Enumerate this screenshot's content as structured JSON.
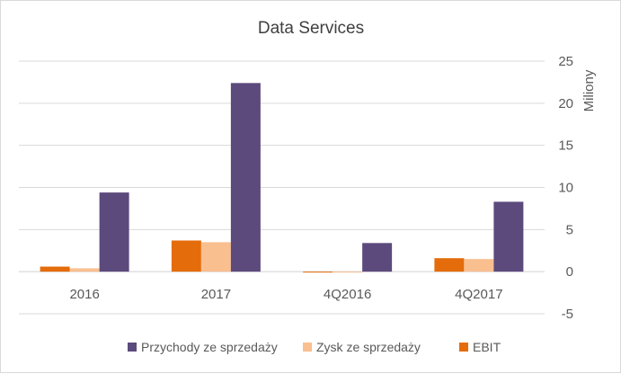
{
  "chart_data": {
    "type": "bar",
    "title": "Data Services",
    "ylabel": "Miliony",
    "xlabel": "",
    "categories": [
      "2016",
      "2017",
      "4Q2016",
      "4Q2017"
    ],
    "ylim": [
      -5,
      25
    ],
    "yticks": [
      25,
      20,
      15,
      10,
      5,
      0,
      -5
    ],
    "y_axis_side": "right",
    "grid": true,
    "legend_position": "bottom",
    "legend_order": [
      0,
      1,
      2
    ],
    "series": [
      {
        "name": "Przychody ze sprzedaży",
        "color": "#5c4a7d",
        "values": [
          9.4,
          22.4,
          3.4,
          8.3
        ]
      },
      {
        "name": "Zysk ze sprzedaży",
        "color": "#f9bf8f",
        "values": [
          0.4,
          3.5,
          -0.1,
          1.5
        ]
      },
      {
        "name": "EBIT",
        "color": "#e46c0a",
        "values": [
          0.6,
          3.7,
          -0.1,
          1.6
        ]
      }
    ],
    "draw_order": [
      2,
      1,
      0
    ]
  }
}
